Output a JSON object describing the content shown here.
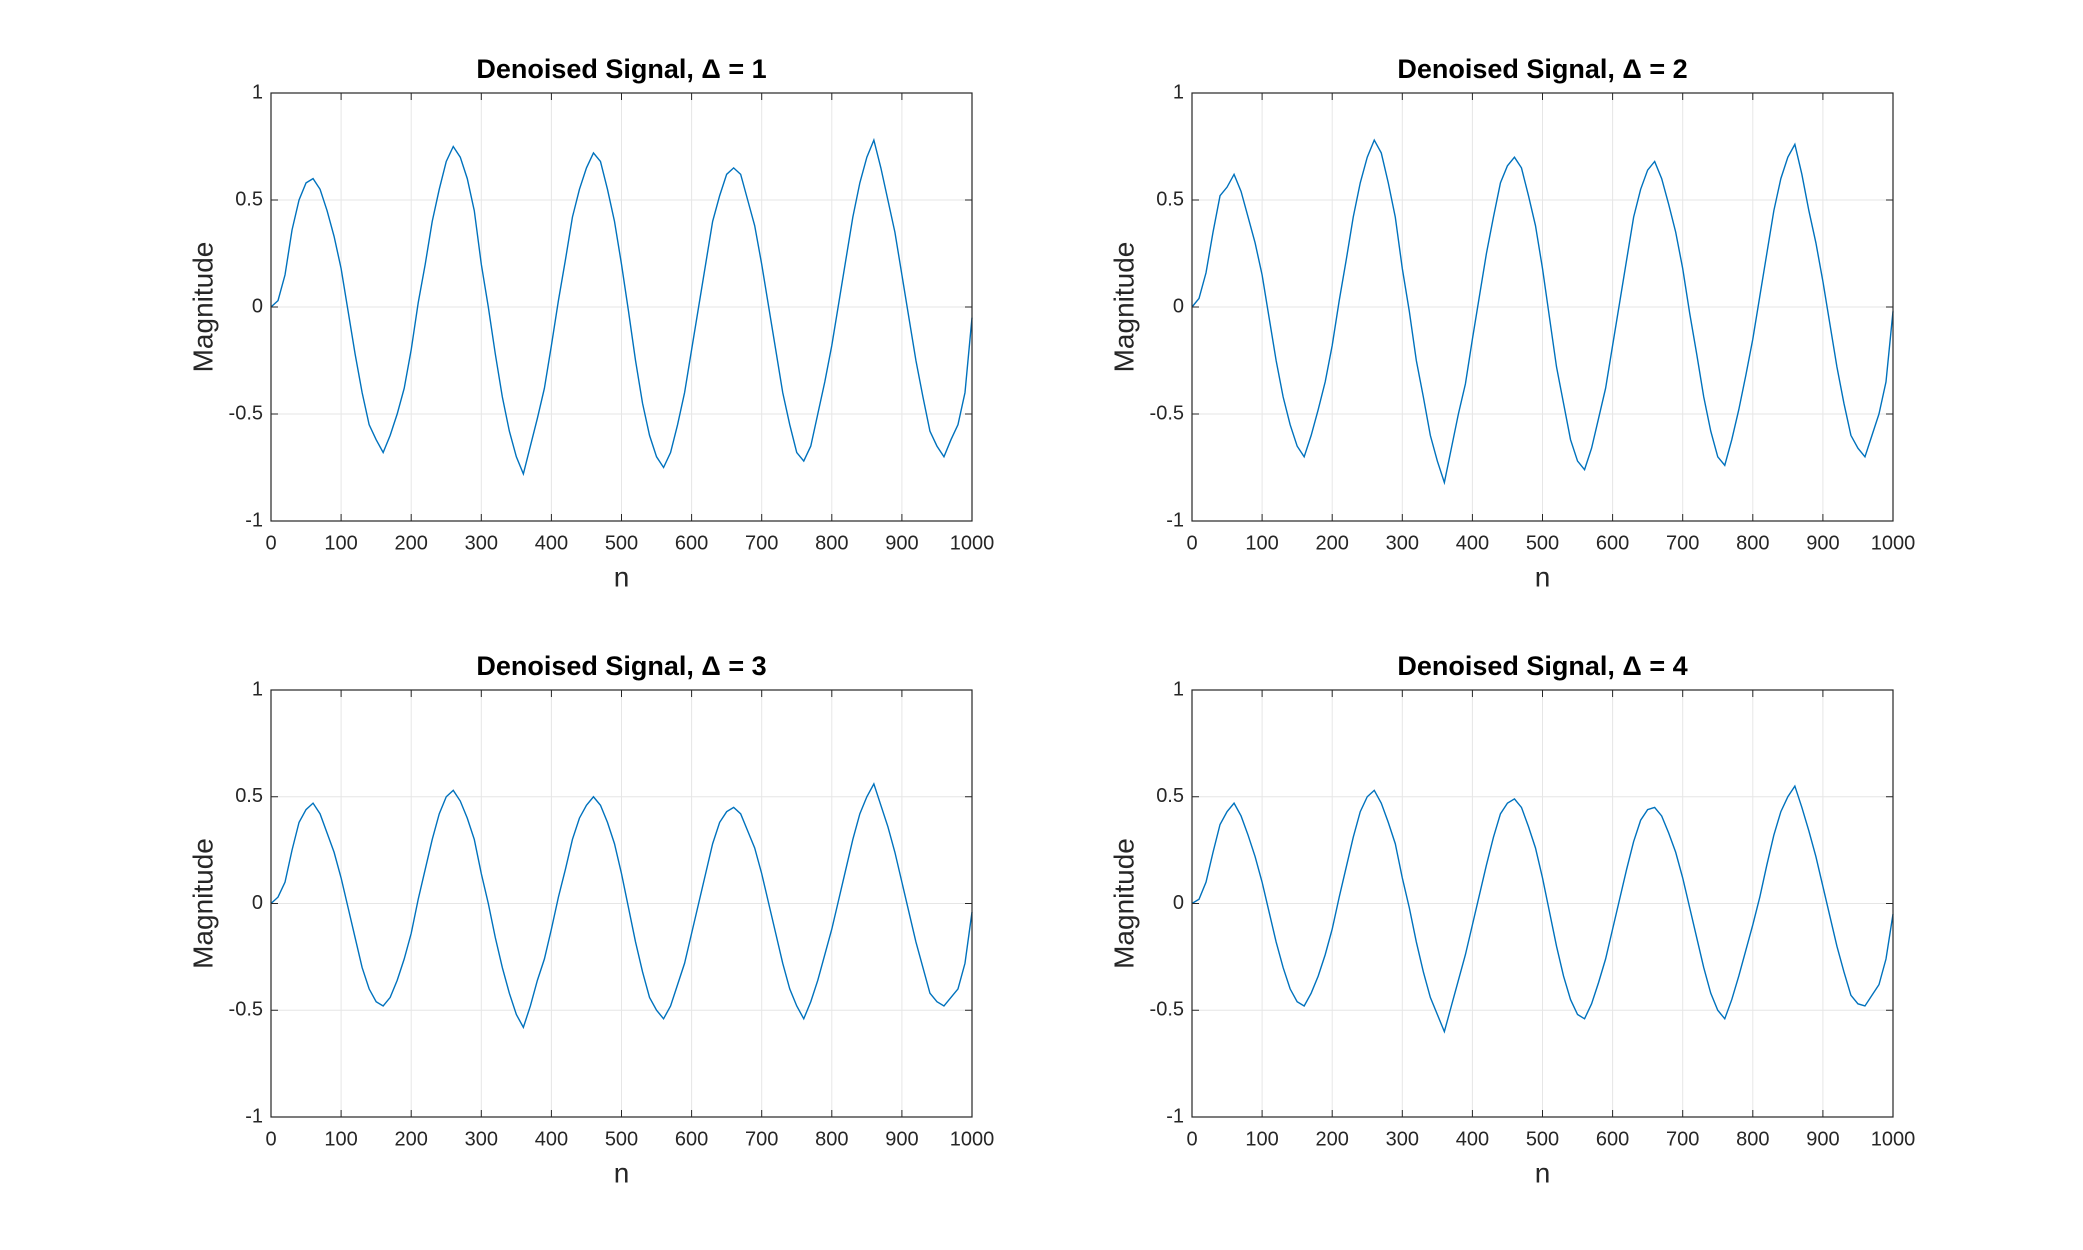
{
  "chart_data": [
    {
      "type": "line",
      "title": "Denoised Signal, Δ = 1",
      "xlabel": "n",
      "ylabel": "Magnitude",
      "color": "#0072bd",
      "grid": true,
      "xlim": [
        0,
        1000
      ],
      "ylim": [
        -1,
        1
      ],
      "xticks": [
        0,
        100,
        200,
        300,
        400,
        500,
        600,
        700,
        800,
        900,
        1000
      ],
      "yticks": [
        -1,
        -0.5,
        0,
        0.5,
        1
      ],
      "x": [
        0,
        10,
        20,
        30,
        40,
        50,
        60,
        70,
        80,
        90,
        100,
        110,
        120,
        130,
        140,
        150,
        160,
        170,
        180,
        190,
        200,
        210,
        220,
        230,
        240,
        250,
        260,
        270,
        280,
        290,
        300,
        310,
        320,
        330,
        340,
        350,
        360,
        370,
        380,
        390,
        400,
        410,
        420,
        430,
        440,
        450,
        460,
        470,
        480,
        490,
        500,
        510,
        520,
        530,
        540,
        550,
        560,
        570,
        580,
        590,
        600,
        610,
        620,
        630,
        640,
        650,
        660,
        670,
        680,
        690,
        700,
        710,
        720,
        730,
        740,
        750,
        760,
        770,
        780,
        790,
        800,
        810,
        820,
        830,
        840,
        850,
        860,
        870,
        880,
        890,
        900,
        910,
        920,
        930,
        940,
        950,
        960,
        970,
        980,
        990,
        1000
      ],
      "values": [
        0,
        0.03,
        0.15,
        0.36,
        0.5,
        0.58,
        0.6,
        0.55,
        0.45,
        0.33,
        0.18,
        -0.02,
        -0.22,
        -0.4,
        -0.55,
        -0.62,
        -0.68,
        -0.6,
        -0.5,
        -0.38,
        -0.2,
        0.02,
        0.2,
        0.4,
        0.55,
        0.68,
        0.75,
        0.7,
        0.6,
        0.45,
        0.2,
        0.0,
        -0.22,
        -0.42,
        -0.58,
        -0.7,
        -0.78,
        -0.65,
        -0.52,
        -0.38,
        -0.18,
        0.03,
        0.22,
        0.42,
        0.55,
        0.65,
        0.72,
        0.68,
        0.55,
        0.4,
        0.2,
        -0.02,
        -0.25,
        -0.45,
        -0.6,
        -0.7,
        -0.75,
        -0.68,
        -0.55,
        -0.4,
        -0.2,
        0.0,
        0.2,
        0.4,
        0.52,
        0.62,
        0.65,
        0.62,
        0.5,
        0.38,
        0.2,
        0.0,
        -0.2,
        -0.4,
        -0.55,
        -0.68,
        -0.72,
        -0.65,
        -0.5,
        -0.35,
        -0.18,
        0.02,
        0.22,
        0.42,
        0.58,
        0.7,
        0.78,
        0.65,
        0.5,
        0.35,
        0.15,
        -0.05,
        -0.25,
        -0.42,
        -0.58,
        -0.65,
        -0.7,
        -0.62,
        -0.55,
        -0.4,
        -0.05
      ]
    },
    {
      "type": "line",
      "title": "Denoised Signal, Δ = 2",
      "xlabel": "n",
      "ylabel": "Magnitude",
      "color": "#0072bd",
      "grid": true,
      "xlim": [
        0,
        1000
      ],
      "ylim": [
        -1,
        1
      ],
      "xticks": [
        0,
        100,
        200,
        300,
        400,
        500,
        600,
        700,
        800,
        900,
        1000
      ],
      "yticks": [
        -1,
        -0.5,
        0,
        0.5,
        1
      ],
      "x": [
        0,
        10,
        20,
        30,
        40,
        50,
        60,
        70,
        80,
        90,
        100,
        110,
        120,
        130,
        140,
        150,
        160,
        170,
        180,
        190,
        200,
        210,
        220,
        230,
        240,
        250,
        260,
        270,
        280,
        290,
        300,
        310,
        320,
        330,
        340,
        350,
        360,
        370,
        380,
        390,
        400,
        410,
        420,
        430,
        440,
        450,
        460,
        470,
        480,
        490,
        500,
        510,
        520,
        530,
        540,
        550,
        560,
        570,
        580,
        590,
        600,
        610,
        620,
        630,
        640,
        650,
        660,
        670,
        680,
        690,
        700,
        710,
        720,
        730,
        740,
        750,
        760,
        770,
        780,
        790,
        800,
        810,
        820,
        830,
        840,
        850,
        860,
        870,
        880,
        890,
        900,
        910,
        920,
        930,
        940,
        950,
        960,
        970,
        980,
        990,
        1000
      ],
      "values": [
        0,
        0.04,
        0.16,
        0.35,
        0.52,
        0.56,
        0.62,
        0.54,
        0.42,
        0.3,
        0.15,
        -0.05,
        -0.25,
        -0.42,
        -0.55,
        -0.65,
        -0.7,
        -0.6,
        -0.48,
        -0.35,
        -0.18,
        0.03,
        0.22,
        0.42,
        0.58,
        0.7,
        0.78,
        0.72,
        0.58,
        0.42,
        0.18,
        -0.02,
        -0.25,
        -0.42,
        -0.6,
        -0.72,
        -0.82,
        -0.66,
        -0.5,
        -0.36,
        -0.15,
        0.05,
        0.25,
        0.42,
        0.58,
        0.66,
        0.7,
        0.65,
        0.52,
        0.38,
        0.18,
        -0.05,
        -0.28,
        -0.45,
        -0.62,
        -0.72,
        -0.76,
        -0.66,
        -0.52,
        -0.38,
        -0.18,
        0.02,
        0.22,
        0.42,
        0.55,
        0.64,
        0.68,
        0.6,
        0.48,
        0.35,
        0.18,
        -0.03,
        -0.22,
        -0.42,
        -0.58,
        -0.7,
        -0.74,
        -0.62,
        -0.48,
        -0.32,
        -0.15,
        0.05,
        0.25,
        0.45,
        0.6,
        0.7,
        0.76,
        0.62,
        0.45,
        0.3,
        0.12,
        -0.08,
        -0.28,
        -0.45,
        -0.6,
        -0.66,
        -0.7,
        -0.6,
        -0.5,
        -0.35,
        -0.02
      ]
    },
    {
      "type": "line",
      "title": "Denoised Signal, Δ = 3",
      "xlabel": "n",
      "ylabel": "Magnitude",
      "color": "#0072bd",
      "grid": true,
      "xlim": [
        0,
        1000
      ],
      "ylim": [
        -1,
        1
      ],
      "xticks": [
        0,
        100,
        200,
        300,
        400,
        500,
        600,
        700,
        800,
        900,
        1000
      ],
      "yticks": [
        -1,
        -0.5,
        0,
        0.5,
        1
      ],
      "x": [
        0,
        10,
        20,
        30,
        40,
        50,
        60,
        70,
        80,
        90,
        100,
        110,
        120,
        130,
        140,
        150,
        160,
        170,
        180,
        190,
        200,
        210,
        220,
        230,
        240,
        250,
        260,
        270,
        280,
        290,
        300,
        310,
        320,
        330,
        340,
        350,
        360,
        370,
        380,
        390,
        400,
        410,
        420,
        430,
        440,
        450,
        460,
        470,
        480,
        490,
        500,
        510,
        520,
        530,
        540,
        550,
        560,
        570,
        580,
        590,
        600,
        610,
        620,
        630,
        640,
        650,
        660,
        670,
        680,
        690,
        700,
        710,
        720,
        730,
        740,
        750,
        760,
        770,
        780,
        790,
        800,
        810,
        820,
        830,
        840,
        850,
        860,
        870,
        880,
        890,
        900,
        910,
        920,
        930,
        940,
        950,
        960,
        970,
        980,
        990,
        1000
      ],
      "values": [
        0,
        0.03,
        0.1,
        0.25,
        0.38,
        0.44,
        0.47,
        0.42,
        0.33,
        0.24,
        0.12,
        -0.02,
        -0.16,
        -0.3,
        -0.4,
        -0.46,
        -0.48,
        -0.44,
        -0.36,
        -0.26,
        -0.14,
        0.02,
        0.16,
        0.3,
        0.42,
        0.5,
        0.53,
        0.48,
        0.4,
        0.3,
        0.14,
        0.0,
        -0.16,
        -0.3,
        -0.42,
        -0.52,
        -0.58,
        -0.48,
        -0.36,
        -0.26,
        -0.12,
        0.03,
        0.16,
        0.3,
        0.4,
        0.46,
        0.5,
        0.46,
        0.38,
        0.28,
        0.14,
        -0.02,
        -0.18,
        -0.32,
        -0.44,
        -0.5,
        -0.54,
        -0.48,
        -0.38,
        -0.28,
        -0.14,
        0.0,
        0.14,
        0.28,
        0.38,
        0.43,
        0.45,
        0.42,
        0.34,
        0.26,
        0.14,
        0.0,
        -0.14,
        -0.28,
        -0.4,
        -0.48,
        -0.54,
        -0.46,
        -0.36,
        -0.24,
        -0.12,
        0.02,
        0.16,
        0.3,
        0.42,
        0.5,
        0.56,
        0.46,
        0.36,
        0.24,
        0.1,
        -0.04,
        -0.18,
        -0.3,
        -0.42,
        -0.46,
        -0.48,
        -0.44,
        -0.4,
        -0.28,
        -0.04
      ]
    },
    {
      "type": "line",
      "title": "Denoised Signal, Δ = 4",
      "xlabel": "n",
      "ylabel": "Magnitude",
      "color": "#0072bd",
      "grid": true,
      "xlim": [
        0,
        1000
      ],
      "ylim": [
        -1,
        1
      ],
      "xticks": [
        0,
        100,
        200,
        300,
        400,
        500,
        600,
        700,
        800,
        900,
        1000
      ],
      "yticks": [
        -1,
        -0.5,
        0,
        0.5,
        1
      ],
      "x": [
        0,
        10,
        20,
        30,
        40,
        50,
        60,
        70,
        80,
        90,
        100,
        110,
        120,
        130,
        140,
        150,
        160,
        170,
        180,
        190,
        200,
        210,
        220,
        230,
        240,
        250,
        260,
        270,
        280,
        290,
        300,
        310,
        320,
        330,
        340,
        350,
        360,
        370,
        380,
        390,
        400,
        410,
        420,
        430,
        440,
        450,
        460,
        470,
        480,
        490,
        500,
        510,
        520,
        530,
        540,
        550,
        560,
        570,
        580,
        590,
        600,
        610,
        620,
        630,
        640,
        650,
        660,
        670,
        680,
        690,
        700,
        710,
        720,
        730,
        740,
        750,
        760,
        770,
        780,
        790,
        800,
        810,
        820,
        830,
        840,
        850,
        860,
        870,
        880,
        890,
        900,
        910,
        920,
        930,
        940,
        950,
        960,
        970,
        980,
        990,
        1000
      ],
      "values": [
        0,
        0.02,
        0.1,
        0.24,
        0.37,
        0.43,
        0.47,
        0.41,
        0.32,
        0.22,
        0.1,
        -0.04,
        -0.18,
        -0.3,
        -0.4,
        -0.46,
        -0.48,
        -0.42,
        -0.34,
        -0.24,
        -0.12,
        0.03,
        0.17,
        0.31,
        0.43,
        0.5,
        0.53,
        0.47,
        0.38,
        0.28,
        0.12,
        -0.02,
        -0.18,
        -0.32,
        -0.44,
        -0.52,
        -0.6,
        -0.48,
        -0.36,
        -0.24,
        -0.1,
        0.04,
        0.18,
        0.31,
        0.42,
        0.47,
        0.49,
        0.45,
        0.36,
        0.26,
        0.12,
        -0.04,
        -0.2,
        -0.34,
        -0.45,
        -0.52,
        -0.54,
        -0.47,
        -0.37,
        -0.26,
        -0.12,
        0.02,
        0.16,
        0.29,
        0.39,
        0.44,
        0.45,
        0.41,
        0.33,
        0.24,
        0.12,
        -0.02,
        -0.16,
        -0.3,
        -0.42,
        -0.5,
        -0.54,
        -0.45,
        -0.34,
        -0.22,
        -0.1,
        0.03,
        0.18,
        0.32,
        0.43,
        0.5,
        0.55,
        0.45,
        0.34,
        0.22,
        0.08,
        -0.06,
        -0.2,
        -0.32,
        -0.43,
        -0.47,
        -0.48,
        -0.43,
        -0.38,
        -0.26,
        -0.05
      ]
    }
  ]
}
